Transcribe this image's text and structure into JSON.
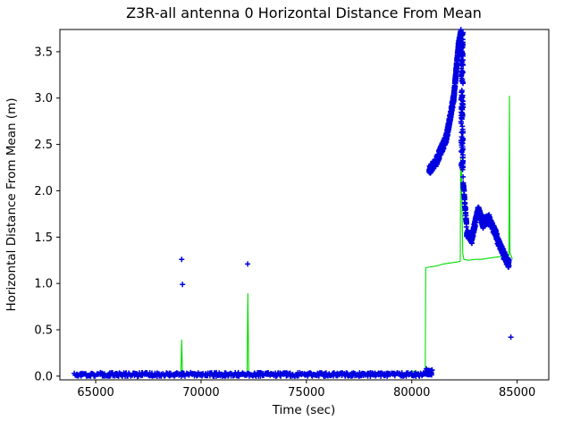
{
  "chart_data": {
    "type": "scatter",
    "title": "Z3R-all antenna 0 Horizontal Distance From Mean",
    "xlabel": "Time (sec)",
    "ylabel": "Horizontal Distance From Mean (m)",
    "xlim": [
      63300,
      86500
    ],
    "ylim": [
      -0.04,
      3.74
    ],
    "xticks": [
      65000,
      70000,
      75000,
      80000,
      85000
    ],
    "yticks": [
      0.0,
      0.5,
      1.0,
      1.5,
      2.0,
      2.5,
      3.0,
      3.5
    ],
    "grid": false,
    "legend": null,
    "colors": {
      "marker_series": "#0000e0",
      "line_series": "#00dd00",
      "axes": "#000000"
    },
    "series": [
      {
        "name": "green-reference-line",
        "type": "line",
        "color": "#00dd00",
        "points": [
          [
            64000,
            0.02
          ],
          [
            64500,
            0.025
          ],
          [
            65000,
            0.02
          ],
          [
            65500,
            0.03
          ],
          [
            66000,
            0.02
          ],
          [
            66500,
            0.025
          ],
          [
            67000,
            0.02
          ],
          [
            67500,
            0.02
          ],
          [
            68000,
            0.025
          ],
          [
            68500,
            0.02
          ],
          [
            69040,
            0.02
          ],
          [
            69080,
            0.39
          ],
          [
            69120,
            0.02
          ],
          [
            69600,
            0.02
          ],
          [
            70000,
            0.025
          ],
          [
            70500,
            0.02
          ],
          [
            71000,
            0.02
          ],
          [
            71500,
            0.025
          ],
          [
            72180,
            0.02
          ],
          [
            72220,
            0.89
          ],
          [
            72260,
            0.02
          ],
          [
            72800,
            0.02
          ],
          [
            73500,
            0.02
          ],
          [
            74200,
            0.025
          ],
          [
            75000,
            0.02
          ],
          [
            75800,
            0.02
          ],
          [
            76500,
            0.025
          ],
          [
            77200,
            0.02
          ],
          [
            78000,
            0.02
          ],
          [
            78800,
            0.025
          ],
          [
            79500,
            0.02
          ],
          [
            80200,
            0.06
          ],
          [
            80260,
            0.02
          ],
          [
            80500,
            0.03
          ],
          [
            80640,
            0.04
          ],
          [
            80660,
            1.17
          ],
          [
            80900,
            1.18
          ],
          [
            81200,
            1.19
          ],
          [
            81500,
            1.21
          ],
          [
            81800,
            1.22
          ],
          [
            82100,
            1.23
          ],
          [
            82300,
            1.24
          ],
          [
            82320,
            2.35
          ],
          [
            82350,
            2.28
          ],
          [
            82380,
            1.85
          ],
          [
            82420,
            1.32
          ],
          [
            82470,
            1.26
          ],
          [
            82700,
            1.25
          ],
          [
            83000,
            1.26
          ],
          [
            83300,
            1.26
          ],
          [
            83600,
            1.27
          ],
          [
            83900,
            1.28
          ],
          [
            84200,
            1.29
          ],
          [
            84450,
            1.3
          ],
          [
            84610,
            1.3
          ],
          [
            84635,
            3.02
          ],
          [
            84660,
            1.33
          ],
          [
            84780,
            1.26
          ]
        ]
      },
      {
        "name": "blue-plus-markers",
        "type": "scatter",
        "marker": "+",
        "color": "#0000e0",
        "band_segments": [
          [
            64000,
            80640,
            0.018,
            0.018,
            0.02,
            520
          ],
          [
            80640,
            80960,
            0.05,
            0.04,
            0.035,
            45
          ],
          [
            80820,
            81150,
            2.22,
            2.31,
            0.045,
            120
          ],
          [
            81150,
            81650,
            2.31,
            2.58,
            0.05,
            170
          ],
          [
            81650,
            82000,
            2.58,
            3.02,
            0.05,
            170
          ],
          [
            82000,
            82210,
            3.02,
            3.56,
            0.05,
            150
          ],
          [
            82210,
            82330,
            3.56,
            3.7,
            0.04,
            90
          ],
          [
            82430,
            82600,
            2.12,
            1.62,
            0.05,
            60
          ],
          [
            82600,
            82860,
            1.55,
            1.47,
            0.04,
            75
          ],
          [
            82860,
            83160,
            1.5,
            1.8,
            0.045,
            95
          ],
          [
            83160,
            83400,
            1.8,
            1.62,
            0.04,
            70
          ],
          [
            83400,
            83700,
            1.67,
            1.7,
            0.05,
            85
          ],
          [
            83700,
            84060,
            1.67,
            1.5,
            0.045,
            85
          ],
          [
            84060,
            84360,
            1.47,
            1.33,
            0.04,
            75
          ],
          [
            84360,
            84620,
            1.31,
            1.21,
            0.05,
            80
          ]
        ],
        "vertical_column": {
          "t0": 82340,
          "t1": 82435,
          "y0": 2.2,
          "y1": 3.72,
          "n": 140
        },
        "outliers": [
          [
            69080,
            1.26
          ],
          [
            69120,
            0.99
          ],
          [
            72210,
            1.21
          ],
          [
            84700,
            0.42
          ]
        ]
      }
    ]
  }
}
